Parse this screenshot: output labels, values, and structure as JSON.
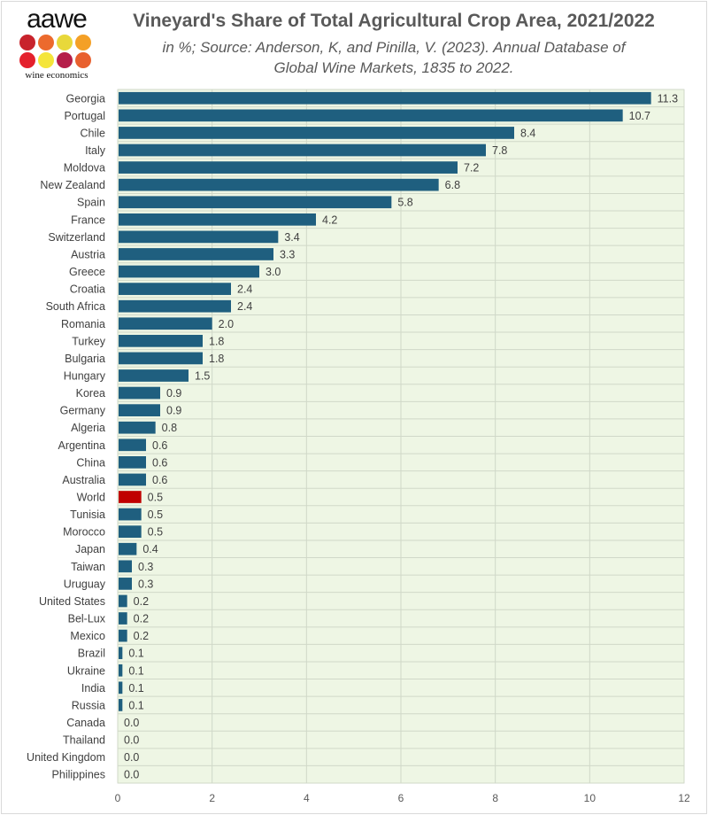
{
  "logo": {
    "text": "aawe",
    "subtext": "wine economics",
    "dot_colors": [
      "#c8232c",
      "#ec6a2d",
      "#e8d83a",
      "#f4a026",
      "#e4202c",
      "#f4e53a",
      "#b51e4a",
      "#e8602e"
    ]
  },
  "chart_data": {
    "type": "bar",
    "orientation": "horizontal",
    "title": "Vineyard's Share of Total Agricultural Crop Area, 2021/2022",
    "subtitle": "in %; Source: Anderson, K, and Pinilla, V. (2023). Annual Database of Global Wine Markets, 1835 to 2022.",
    "subtitle_lines": [
      "in %; Source: Anderson, K, and Pinilla, V. (2023). Annual Database of",
      "Global Wine Markets, 1835 to 2022."
    ],
    "xlim": [
      0,
      12
    ],
    "xticks": [
      0,
      2,
      4,
      6,
      8,
      10,
      12
    ],
    "grid": true,
    "plot_background": "#eef6e4",
    "bar_color": "#1f5f7f",
    "highlight_color": "#c00000",
    "highlight_category": "World",
    "categories": [
      "Georgia",
      "Portugal",
      "Chile",
      "Italy",
      "Moldova",
      "New Zealand",
      "Spain",
      "France",
      "Switzerland",
      "Austria",
      "Greece",
      "Croatia",
      "South Africa",
      "Romania",
      "Turkey",
      "Bulgaria",
      "Hungary",
      "Korea",
      "Germany",
      "Algeria",
      "Argentina",
      "China",
      "Australia",
      "World",
      "Tunisia",
      "Morocco",
      "Japan",
      "Taiwan",
      "Uruguay",
      "United States",
      "Bel-Lux",
      "Mexico",
      "Brazil",
      "Ukraine",
      "India",
      "Russia",
      "Canada",
      "Thailand",
      "United Kingdom",
      "Philippines"
    ],
    "values": [
      11.3,
      10.7,
      8.4,
      7.8,
      7.2,
      6.8,
      5.8,
      4.2,
      3.4,
      3.3,
      3.0,
      2.4,
      2.4,
      2.0,
      1.8,
      1.8,
      1.5,
      0.9,
      0.9,
      0.8,
      0.6,
      0.6,
      0.6,
      0.5,
      0.5,
      0.5,
      0.4,
      0.3,
      0.3,
      0.2,
      0.2,
      0.2,
      0.1,
      0.1,
      0.1,
      0.1,
      0.0,
      0.0,
      0.0,
      0.0
    ],
    "data_labels": [
      "11.3",
      "10.7",
      "8.4",
      "7.8",
      "7.2",
      "6.8",
      "5.8",
      "4.2",
      "3.4",
      "3.3",
      "3.0",
      "2.4",
      "2.4",
      "2.0",
      "1.8",
      "1.8",
      "1.5",
      "0.9",
      "0.9",
      "0.8",
      "0.6",
      "0.6",
      "0.6",
      "0.5",
      "0.5",
      "0.5",
      "0.4",
      "0.3",
      "0.3",
      "0.2",
      "0.2",
      "0.2",
      "0.1",
      "0.1",
      "0.1",
      "0.1",
      "0.0",
      "0.0",
      "0.0",
      "0.0"
    ]
  }
}
